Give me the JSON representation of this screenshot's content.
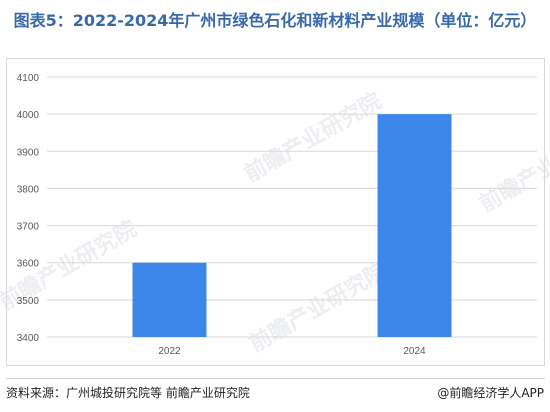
{
  "chart_data": {
    "type": "bar",
    "title": "图表5：2022-2024年广州市绿色石化和新材料产业规模（单位：亿元）",
    "categories": [
      "2022",
      "2024"
    ],
    "values": [
      3600,
      4000
    ],
    "ylim": [
      3400,
      4100
    ],
    "yticks": [
      3400,
      3500,
      3600,
      3700,
      3800,
      3900,
      4000,
      4100
    ],
    "xlabel": "",
    "ylabel": "",
    "grid": true,
    "legend": "none",
    "bar_color": "#3d86ea"
  },
  "footer": {
    "source": "资料来源：广州城投研究院等 前瞻产业研究院",
    "credit": "@前瞻经济学人APP"
  },
  "watermark": {
    "text": "前瞻产业研究院"
  },
  "colors": {
    "title": "#3a69a8",
    "grid": "#d9d9d9",
    "axis_text": "#595959"
  }
}
